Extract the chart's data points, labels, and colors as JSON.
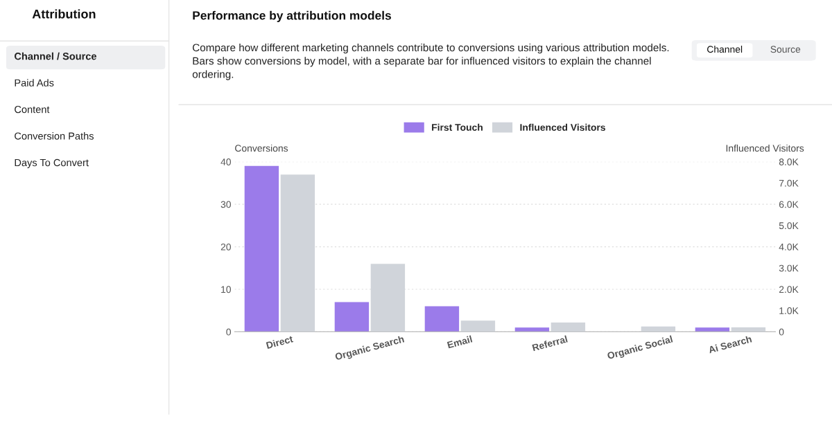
{
  "chart_data": {
    "type": "bar",
    "title": "Performance by attribution models",
    "subtitle": "Compare how different marketing channels contribute to conversions using various attribution models. Bars show conversions by model, with a separate bar for influenced visitors to explain the channel ordering.",
    "categories": [
      "Direct",
      "Organic Search",
      "Email",
      "Referral",
      "Organic Social",
      "Ai Search"
    ],
    "series": [
      {
        "name": "First Touch",
        "color": "#9b7bea",
        "values": [
          39,
          7,
          6,
          1,
          0,
          1
        ]
      },
      {
        "name": "Influenced Visitors",
        "color": "#d0d4da",
        "axis": "y2",
        "values": [
          7400,
          3200,
          530,
          440,
          250,
          210
        ]
      }
    ],
    "ylabel": "Conversions",
    "y2label": "Influenced Visitors",
    "ylim": [
      0,
      40
    ],
    "yticks": [
      0,
      10,
      20,
      30,
      40
    ],
    "y2lim": [
      0,
      8000
    ],
    "y2ticks": [
      0,
      {
        "value": 1000,
        "label": "1.0K"
      },
      {
        "value": 2000,
        "label": "2.0K"
      },
      {
        "value": 3000,
        "label": "3.0K"
      },
      {
        "value": 4000,
        "label": "4.0K"
      },
      {
        "value": 5000,
        "label": "5.0K"
      },
      {
        "value": 6000,
        "label": "6.0K"
      },
      {
        "value": 7000,
        "label": "7.0K"
      },
      {
        "value": 8000,
        "label": "8.0K"
      }
    ],
    "grid": "y",
    "legend": "top",
    "annotations": [
      "Attribution",
      "Channel / Source",
      "Paid Ads",
      "Content",
      "Conversion Paths",
      "Days To Convert",
      "Channel",
      "Source"
    ]
  }
}
